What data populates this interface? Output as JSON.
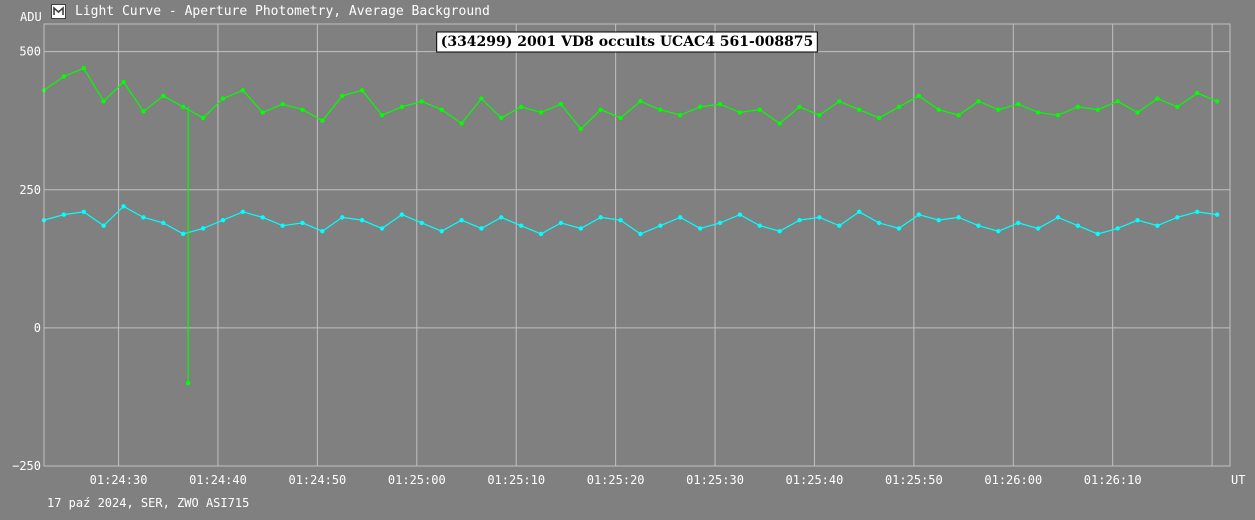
{
  "window": {
    "title": "Light Curve - Aperture Photometry, Average Background"
  },
  "footer": {
    "caption": "17 paź 2024, SER, ZWO ASI715"
  },
  "colors": {
    "background": "#808080",
    "grid": "#c0c0c0",
    "target_series": "#00ff00",
    "comparison_series": "#00ffff",
    "title_box": "#ffffff"
  },
  "chart_data": {
    "type": "line",
    "title": "(334299) 2001 VD8 occults UCAC4 561-008875",
    "ylabel": "ADU",
    "xlabel": "UT",
    "ylim": [
      -250,
      550
    ],
    "yticks": [
      500,
      250,
      0,
      -250
    ],
    "ytick_labels": [
      "500",
      "250",
      "0",
      "−250"
    ],
    "xlim": [
      "01:24:22.5",
      "01:26:21.8"
    ],
    "xticks": [
      "01:24:30",
      "01:24:40",
      "01:24:50",
      "01:25:00",
      "01:25:10",
      "01:25:20",
      "01:25:30",
      "01:25:40",
      "01:25:50",
      "01:26:00",
      "01:26:10",
      "01:26:20"
    ],
    "xtick_labels": [
      "01:24:30",
      "01:24:40",
      "01:24:50",
      "01:25:00",
      "01:25:10",
      "01:25:20",
      "01:25:30",
      "01:25:40",
      "01:25:50",
      "01:26:00",
      "01:26:10",
      ""
    ],
    "grid": true,
    "series": [
      {
        "color": "#00ff00",
        "sample_every_s": 2,
        "values": [
          430,
          455,
          470,
          410,
          445,
          392,
          420,
          400,
          380,
          415,
          430,
          390,
          405,
          395,
          375,
          420,
          430,
          385,
          400,
          410,
          395,
          370,
          415,
          380,
          400,
          390,
          405,
          360,
          395,
          380,
          410,
          395,
          385,
          400,
          405,
          390,
          395,
          370,
          400,
          385,
          410,
          395,
          380,
          400,
          420,
          395,
          385,
          410,
          395,
          405,
          390,
          385,
          400,
          395,
          410,
          390,
          415,
          400,
          425,
          410
        ]
      },
      {
        "color": "#00ffff",
        "sample_every_s": 2,
        "values": [
          195,
          205,
          210,
          185,
          220,
          200,
          190,
          170,
          180,
          195,
          210,
          200,
          185,
          190,
          175,
          200,
          195,
          180,
          205,
          190,
          175,
          195,
          180,
          200,
          185,
          170,
          190,
          180,
          200,
          195,
          170,
          185,
          200,
          180,
          190,
          205,
          185,
          175,
          195,
          200,
          185,
          210,
          190,
          180,
          205,
          195,
          200,
          185,
          175,
          190,
          180,
          200,
          185,
          170,
          180,
          195,
          185,
          200,
          210,
          205
        ]
      }
    ],
    "annotations": [
      {
        "series": 0,
        "time": "01:24:37",
        "value": -100,
        "label": ""
      }
    ]
  }
}
